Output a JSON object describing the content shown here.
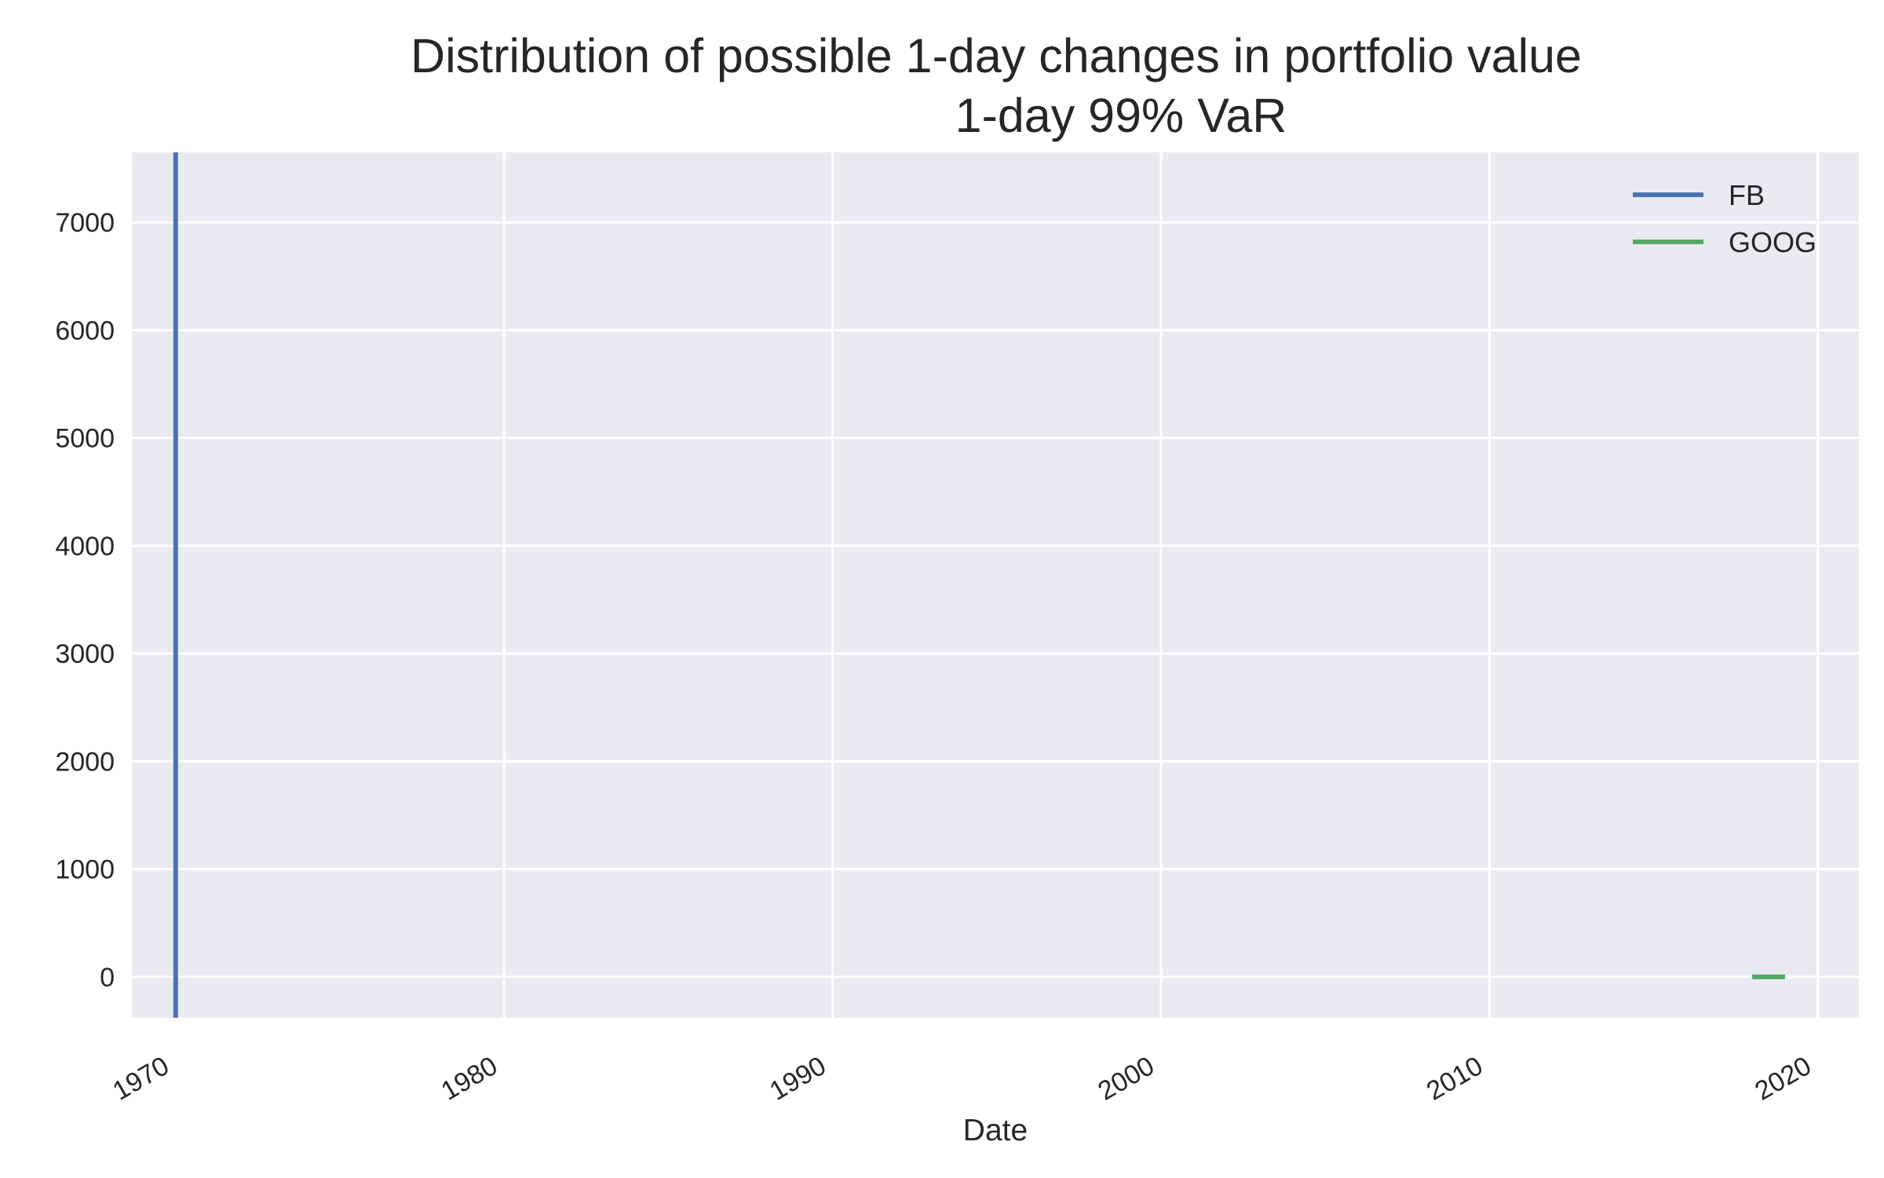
{
  "chart_data": {
    "type": "line",
    "title": "Distribution of possible 1-day changes in portfolio value",
    "subtitle": "1-day 99% VaR",
    "xlabel": "Date",
    "ylabel": "",
    "x_axis_type": "date",
    "xlim": [
      "1968-09-01",
      "2021-04-01"
    ],
    "ylim": [
      -380,
      7650
    ],
    "x_ticks": [
      {
        "value": "1970-01-01",
        "label": "1970"
      },
      {
        "value": "1980-01-01",
        "label": "1980"
      },
      {
        "value": "1990-01-01",
        "label": "1990"
      },
      {
        "value": "2000-01-01",
        "label": "2000"
      },
      {
        "value": "2010-01-01",
        "label": "2010"
      },
      {
        "value": "2020-01-01",
        "label": "2020"
      }
    ],
    "y_ticks": [
      0,
      1000,
      2000,
      3000,
      4000,
      5000,
      6000,
      7000
    ],
    "grid": true,
    "legend_position": "top-right",
    "background_color": "#eaeaf2",
    "series": [
      {
        "name": "FB",
        "color": "#4c72b0",
        "points": [
          {
            "x": "1970-01-01",
            "y": -380
          },
          {
            "x": "1970-01-01",
            "y": 7650
          }
        ]
      },
      {
        "name": "GOOG",
        "color": "#55a868",
        "points": [
          {
            "x": "2018-01-01",
            "y": 0
          },
          {
            "x": "2019-01-01",
            "y": 0
          }
        ]
      }
    ]
  }
}
